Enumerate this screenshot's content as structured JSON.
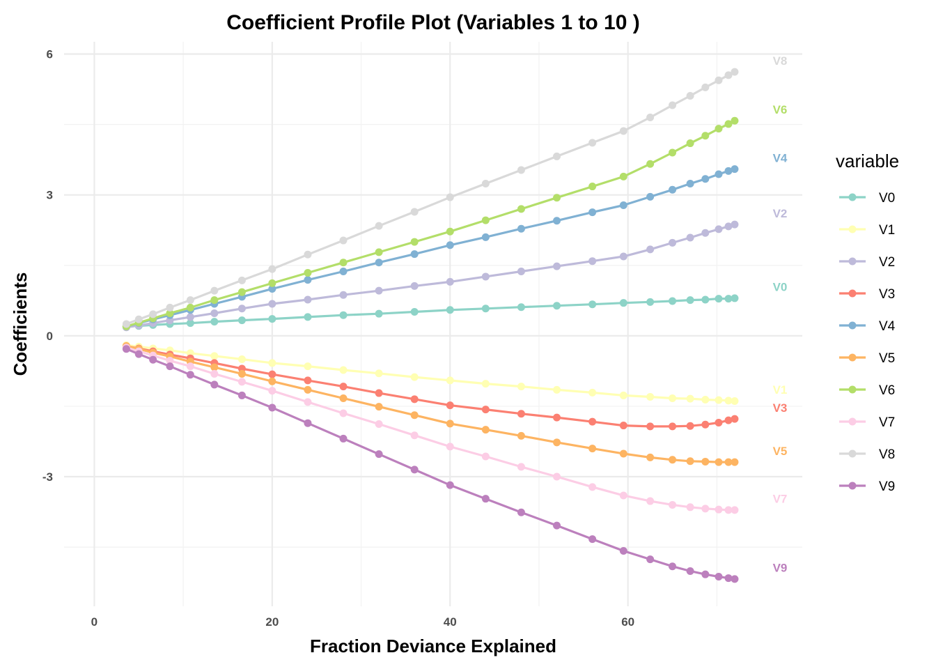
{
  "chart_data": {
    "type": "line",
    "title": "Coefficient Profile Plot (Variables 1 to 10 )",
    "xlabel": "Fraction Deviance Explained",
    "ylabel": "Coefficients",
    "xlim": [
      -3.4,
      79.6
    ],
    "ylim": [
      -5.76,
      6.26
    ],
    "x_ticks": [
      0,
      20,
      40,
      60
    ],
    "y_ticks": [
      -3,
      0,
      3,
      6
    ],
    "x_tick_labels": [
      "0",
      "20",
      "40",
      "60"
    ],
    "y_tick_labels": [
      "-3",
      "0",
      "3",
      "6"
    ],
    "grid": true,
    "legend": {
      "title": "variable",
      "position": "right"
    },
    "x": [
      3.6,
      5,
      6.6,
      8.5,
      10.8,
      13.5,
      16.6,
      20,
      24,
      28,
      32,
      36,
      40,
      44,
      48,
      52,
      56,
      59.5,
      62.5,
      65,
      67,
      68.7,
      70.2,
      71.3,
      72
    ],
    "series": [
      {
        "name": "V0",
        "color": "#8DD3C7",
        "values": [
          0.2,
          0.21,
          0.23,
          0.25,
          0.27,
          0.3,
          0.33,
          0.36,
          0.4,
          0.44,
          0.47,
          0.51,
          0.55,
          0.58,
          0.61,
          0.64,
          0.67,
          0.7,
          0.72,
          0.74,
          0.76,
          0.77,
          0.79,
          0.79,
          0.8
        ]
      },
      {
        "name": "V1",
        "color": "#FFFFB3",
        "values": [
          -0.2,
          -0.23,
          -0.27,
          -0.31,
          -0.37,
          -0.43,
          -0.5,
          -0.58,
          -0.65,
          -0.73,
          -0.8,
          -0.88,
          -0.95,
          -1.02,
          -1.08,
          -1.15,
          -1.21,
          -1.27,
          -1.3,
          -1.33,
          -1.34,
          -1.36,
          -1.37,
          -1.38,
          -1.39
        ]
      },
      {
        "name": "V2",
        "color": "#BEBADA",
        "values": [
          0.18,
          0.22,
          0.27,
          0.33,
          0.4,
          0.48,
          0.58,
          0.68,
          0.77,
          0.87,
          0.96,
          1.06,
          1.15,
          1.26,
          1.37,
          1.48,
          1.59,
          1.69,
          1.84,
          1.98,
          2.09,
          2.19,
          2.27,
          2.33,
          2.37
        ]
      },
      {
        "name": "V3",
        "color": "#FB8072",
        "values": [
          -0.22,
          -0.27,
          -0.33,
          -0.4,
          -0.48,
          -0.58,
          -0.7,
          -0.82,
          -0.95,
          -1.08,
          -1.22,
          -1.35,
          -1.48,
          -1.57,
          -1.66,
          -1.74,
          -1.83,
          -1.91,
          -1.93,
          -1.93,
          -1.92,
          -1.89,
          -1.85,
          -1.8,
          -1.77
        ]
      },
      {
        "name": "V4",
        "color": "#80B1D3",
        "values": [
          0.2,
          0.27,
          0.35,
          0.44,
          0.55,
          0.68,
          0.83,
          1.0,
          1.19,
          1.37,
          1.56,
          1.74,
          1.93,
          2.1,
          2.28,
          2.45,
          2.63,
          2.78,
          2.96,
          3.11,
          3.24,
          3.34,
          3.44,
          3.51,
          3.55
        ]
      },
      {
        "name": "V5",
        "color": "#FDB462",
        "values": [
          -0.22,
          -0.28,
          -0.36,
          -0.44,
          -0.55,
          -0.67,
          -0.81,
          -0.97,
          -1.15,
          -1.33,
          -1.51,
          -1.69,
          -1.87,
          -2.0,
          -2.13,
          -2.27,
          -2.4,
          -2.51,
          -2.59,
          -2.64,
          -2.67,
          -2.68,
          -2.69,
          -2.69,
          -2.69
        ]
      },
      {
        "name": "V6",
        "color": "#B3DE69",
        "values": [
          0.2,
          0.28,
          0.37,
          0.48,
          0.6,
          0.76,
          0.93,
          1.12,
          1.34,
          1.56,
          1.78,
          2.0,
          2.22,
          2.46,
          2.7,
          2.94,
          3.18,
          3.39,
          3.66,
          3.9,
          4.1,
          4.26,
          4.41,
          4.51,
          4.58
        ]
      },
      {
        "name": "V7",
        "color": "#FCCDE5",
        "values": [
          -0.25,
          -0.33,
          -0.42,
          -0.53,
          -0.65,
          -0.81,
          -0.98,
          -1.17,
          -1.41,
          -1.65,
          -1.88,
          -2.12,
          -2.36,
          -2.57,
          -2.79,
          -3.0,
          -3.22,
          -3.4,
          -3.52,
          -3.6,
          -3.65,
          -3.68,
          -3.7,
          -3.71,
          -3.71
        ]
      },
      {
        "name": "V8",
        "color": "#D9D9D9",
        "values": [
          0.25,
          0.35,
          0.46,
          0.6,
          0.76,
          0.96,
          1.18,
          1.42,
          1.73,
          2.03,
          2.34,
          2.64,
          2.95,
          3.24,
          3.53,
          3.82,
          4.11,
          4.36,
          4.65,
          4.91,
          5.11,
          5.29,
          5.44,
          5.55,
          5.62
        ]
      },
      {
        "name": "V9",
        "color": "#BC80BD",
        "values": [
          -0.28,
          -0.39,
          -0.51,
          -0.65,
          -0.83,
          -1.04,
          -1.27,
          -1.53,
          -1.86,
          -2.19,
          -2.52,
          -2.85,
          -3.18,
          -3.47,
          -3.76,
          -4.04,
          -4.33,
          -4.58,
          -4.76,
          -4.91,
          -5.01,
          -5.08,
          -5.13,
          -5.16,
          -5.18
        ]
      }
    ]
  }
}
